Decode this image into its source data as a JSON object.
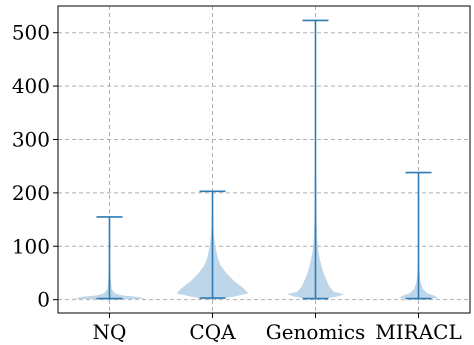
{
  "chart_data": {
    "type": "violin",
    "title": "",
    "xlabel": "",
    "ylabel": "",
    "categories": [
      "NQ",
      "CQA",
      "Genomics",
      "MIRACL"
    ],
    "ylim": [
      -25,
      550
    ],
    "yticks": [
      0,
      100,
      200,
      300,
      400,
      500
    ],
    "grid": true,
    "grid_style": "dashed",
    "colors": {
      "violin_fill": "#b9d4e8",
      "stat_line": "#2e7bb4",
      "grid": "#b0b0b0",
      "axis": "#000000"
    },
    "series": [
      {
        "category": "NQ",
        "min": 2,
        "max": 155,
        "density": [
          [
            0,
            0.1
          ],
          [
            2,
            1.0
          ],
          [
            5,
            0.8
          ],
          [
            8,
            0.35
          ],
          [
            12,
            0.15
          ],
          [
            20,
            0.06
          ],
          [
            40,
            0.03
          ],
          [
            80,
            0.01
          ],
          [
            155,
            0.005
          ]
        ]
      },
      {
        "category": "CQA",
        "min": 3,
        "max": 203,
        "density": [
          [
            0,
            0.05
          ],
          [
            5,
            0.55
          ],
          [
            12,
            1.0
          ],
          [
            22,
            0.85
          ],
          [
            35,
            0.6
          ],
          [
            50,
            0.38
          ],
          [
            65,
            0.22
          ],
          [
            80,
            0.14
          ],
          [
            100,
            0.08
          ],
          [
            120,
            0.04
          ],
          [
            150,
            0.02
          ],
          [
            203,
            0.005
          ]
        ]
      },
      {
        "category": "Genomics",
        "min": 2,
        "max": 523,
        "density": [
          [
            0,
            0.05
          ],
          [
            5,
            0.55
          ],
          [
            10,
            0.8
          ],
          [
            15,
            0.5
          ],
          [
            25,
            0.38
          ],
          [
            40,
            0.28
          ],
          [
            55,
            0.2
          ],
          [
            70,
            0.14
          ],
          [
            90,
            0.08
          ],
          [
            110,
            0.05
          ],
          [
            150,
            0.03
          ],
          [
            250,
            0.015
          ],
          [
            523,
            0.005
          ]
        ]
      },
      {
        "category": "MIRACL",
        "min": 2,
        "max": 238,
        "density": [
          [
            0,
            0.1
          ],
          [
            3,
            0.55
          ],
          [
            7,
            0.45
          ],
          [
            12,
            0.25
          ],
          [
            20,
            0.12
          ],
          [
            35,
            0.05
          ],
          [
            50,
            0.03
          ],
          [
            80,
            0.015
          ],
          [
            150,
            0.008
          ],
          [
            238,
            0.003
          ]
        ]
      }
    ]
  }
}
